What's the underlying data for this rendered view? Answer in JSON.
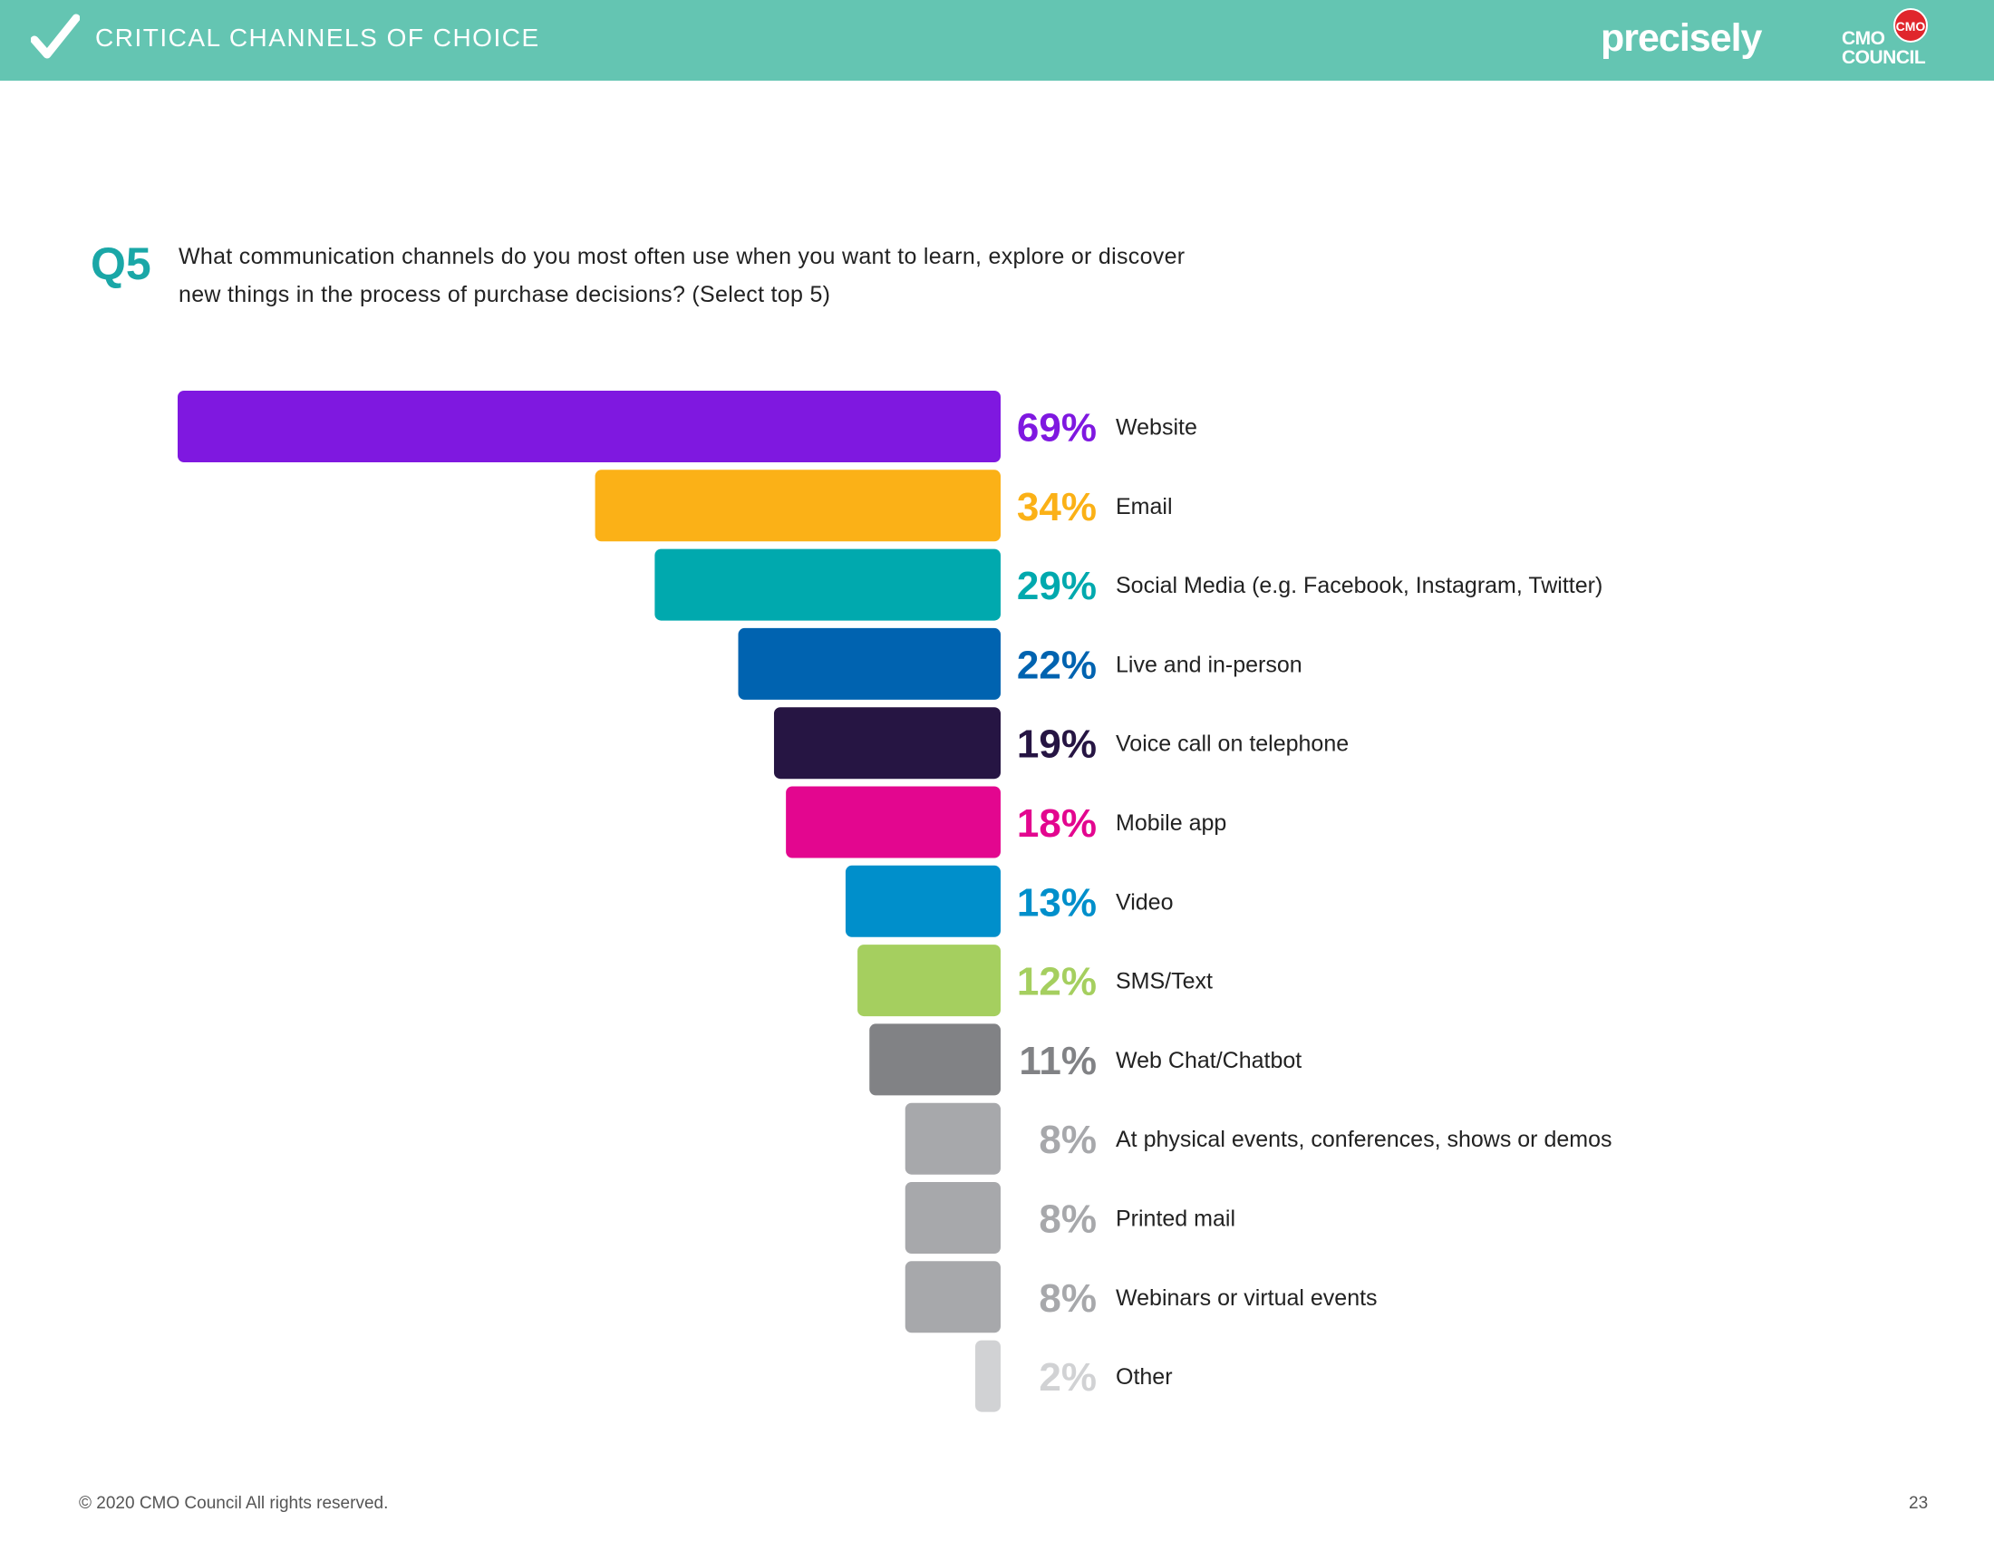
{
  "header": {
    "title": "CRITICAL CHANNELS OF CHOICE",
    "brand_precisely": "precisely",
    "brand_cmo_line1": "CMO",
    "brand_cmo_line2": "COUNCIL",
    "brand_cmo_badge": "CMO"
  },
  "question": {
    "label": "Q5",
    "text": "What communication channels do you most often use when you want to learn, explore or discover new things in the process of purchase decisions? (Select top 5)"
  },
  "chart_data": {
    "type": "bar",
    "orientation": "horizontal",
    "bar_alignment": "right",
    "categories": [
      "Website",
      "Email",
      "Social Media (e.g. Facebook, Instagram, Twitter)",
      "Live and in-person",
      "Voice call on telephone",
      "Mobile app",
      "Video",
      "SMS/Text",
      "Web Chat/Chatbot",
      "At physical events, conferences, shows or demos",
      "Printed mail",
      "Webinars or virtual events",
      "Other"
    ],
    "values": [
      69,
      34,
      29,
      22,
      19,
      18,
      13,
      12,
      11,
      8,
      8,
      8,
      2
    ],
    "value_labels": [
      "69%",
      "34%",
      "29%",
      "22%",
      "19%",
      "18%",
      "13%",
      "12%",
      "11%",
      "8%",
      "8%",
      "8%",
      "2%"
    ],
    "colors": [
      "#7f18e0",
      "#fbb117",
      "#00a9ae",
      "#0063b0",
      "#261543",
      "#e3068f",
      "#008fcb",
      "#a5cf5f",
      "#818285",
      "#a7a8ab",
      "#a7a8ab",
      "#a7a8ab",
      "#d1d2d4"
    ],
    "unit": "%",
    "title": "",
    "xlabel": "",
    "ylabel": "",
    "grid": false,
    "legend": "none"
  },
  "footer": {
    "copyright": "© 2020 CMO Council  All rights reserved.",
    "page_number": "23"
  }
}
